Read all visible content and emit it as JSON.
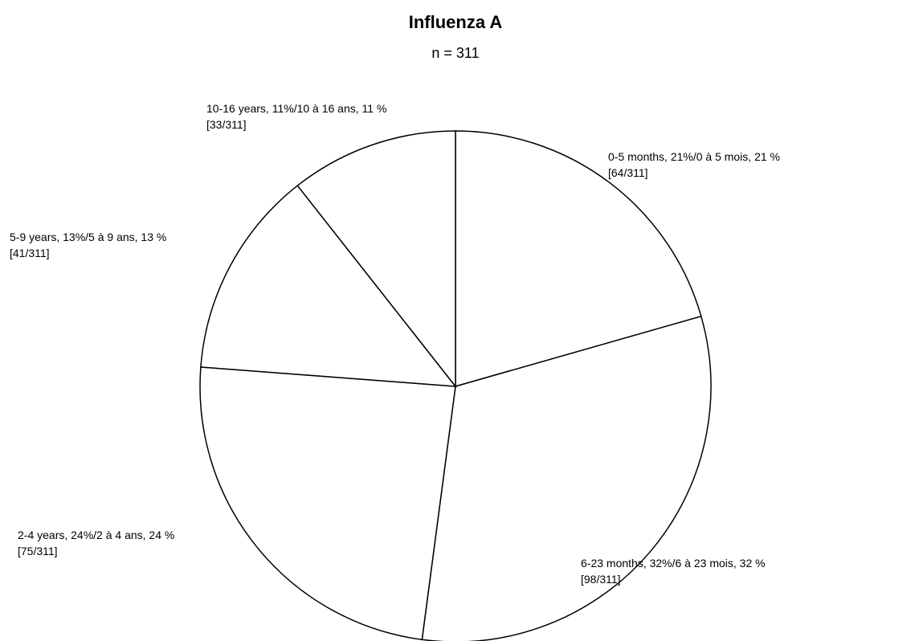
{
  "chart_data": {
    "type": "pie",
    "title": "Influenza A",
    "subtitle": "n = 311",
    "categories": [
      "0-5 months, 21%/0 à 5 mois, 21 %",
      "6-23 months, 32%/6 à 23 mois, 32 %",
      "2-4 years, 24%/2 à 4 ans, 24 %",
      "5-9 years, 13%/5 à 9 ans, 13 %",
      "10-16 years, 11%/10 à 16 ans, 11 %"
    ],
    "values": [
      64,
      98,
      75,
      41,
      33
    ],
    "value_labels": [
      "[64/311]",
      "[98/311]",
      "[75/311]",
      "[41/311]",
      "[33/311]"
    ],
    "color": "#ffffff"
  }
}
